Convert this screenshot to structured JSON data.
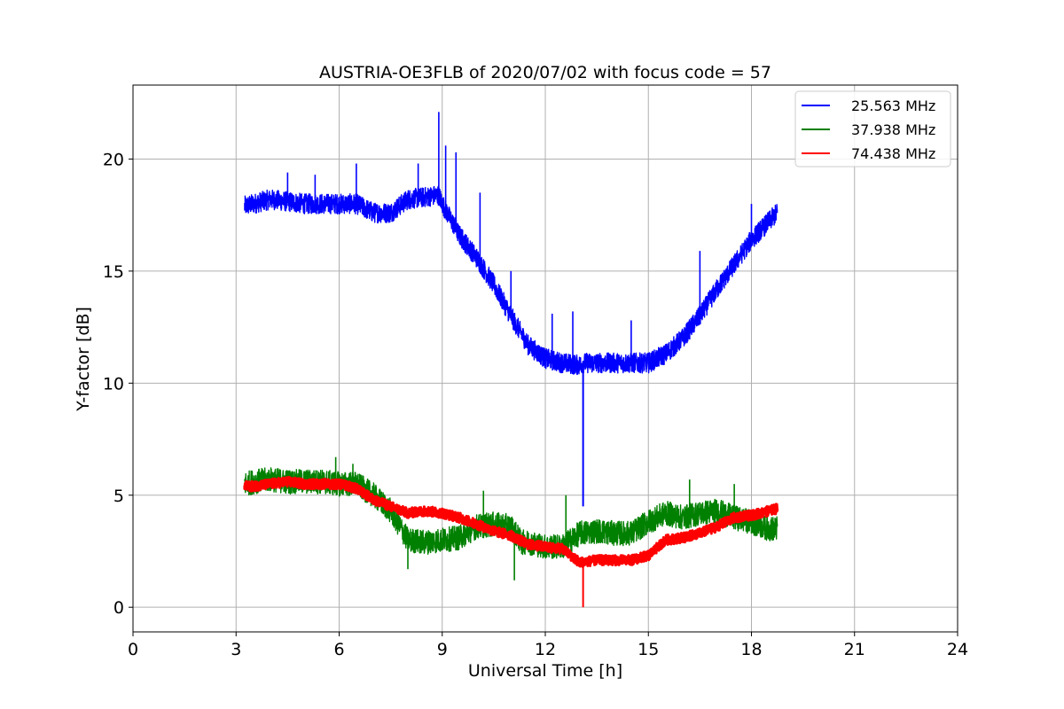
{
  "chart_data": {
    "type": "line",
    "title": "AUSTRIA-OE3FLB of 2020/07/02 with focus code = 57",
    "xlabel": "Universal Time [h]",
    "ylabel": "Y-factor [dB]",
    "xlim": [
      0,
      24
    ],
    "ylim": [
      -1.1,
      23.3
    ],
    "xticks": [
      0,
      3,
      6,
      9,
      12,
      15,
      18,
      21,
      24
    ],
    "yticks": [
      0,
      5,
      10,
      15,
      20
    ],
    "grid": true,
    "legend_position": "top-right",
    "series": [
      {
        "name": "25.563 MHz",
        "color": "#0000ff",
        "x": [
          3.25,
          3.5,
          4.0,
          4.5,
          5.0,
          5.5,
          6.0,
          6.5,
          7.0,
          7.5,
          8.0,
          8.5,
          8.9,
          9.0,
          9.5,
          10.0,
          10.5,
          11.0,
          11.5,
          12.0,
          12.5,
          13.0,
          13.1,
          13.5,
          14.0,
          14.5,
          15.0,
          15.5,
          16.0,
          16.5,
          17.0,
          17.5,
          18.0,
          18.5,
          18.75
        ],
        "y": [
          17.9,
          18.0,
          18.2,
          18.1,
          18.0,
          18.0,
          18.0,
          18.0,
          17.6,
          17.6,
          18.2,
          18.3,
          18.4,
          18.0,
          16.6,
          15.6,
          14.4,
          13.0,
          11.7,
          11.1,
          10.9,
          10.8,
          10.9,
          10.9,
          10.9,
          10.9,
          10.9,
          11.3,
          12.0,
          13.0,
          14.2,
          15.3,
          16.4,
          17.2,
          17.6
        ],
        "noise": 0.45,
        "spikes": [
          {
            "x": 4.5,
            "y": 19.4
          },
          {
            "x": 5.3,
            "y": 19.3
          },
          {
            "x": 6.5,
            "y": 19.8
          },
          {
            "x": 8.3,
            "y": 19.8
          },
          {
            "x": 8.9,
            "y": 22.1
          },
          {
            "x": 9.1,
            "y": 20.6
          },
          {
            "x": 9.4,
            "y": 20.3
          },
          {
            "x": 10.1,
            "y": 18.5
          },
          {
            "x": 11.0,
            "y": 15.0
          },
          {
            "x": 12.2,
            "y": 13.1
          },
          {
            "x": 12.8,
            "y": 13.2
          },
          {
            "x": 14.5,
            "y": 12.8
          },
          {
            "x": 16.5,
            "y": 15.9
          },
          {
            "x": 18.0,
            "y": 18.0
          }
        ],
        "drop": {
          "x": 13.1,
          "y": 4.5
        }
      },
      {
        "name": "37.938 MHz",
        "color": "#008000",
        "x": [
          3.25,
          3.5,
          4.0,
          4.5,
          5.0,
          5.5,
          6.0,
          6.5,
          7.0,
          7.5,
          8.0,
          8.5,
          9.0,
          9.5,
          10.0,
          10.5,
          11.0,
          11.3,
          11.5,
          12.0,
          12.5,
          13.0,
          13.5,
          14.0,
          14.5,
          15.0,
          15.5,
          16.0,
          16.5,
          17.0,
          17.5,
          18.0,
          18.5,
          18.75
        ],
        "y": [
          5.5,
          5.6,
          5.7,
          5.6,
          5.6,
          5.6,
          5.5,
          5.5,
          5.0,
          4.3,
          3.0,
          2.9,
          3.0,
          3.1,
          3.6,
          3.7,
          3.6,
          2.9,
          2.9,
          2.7,
          2.7,
          3.3,
          3.4,
          3.3,
          3.3,
          3.8,
          4.2,
          4.0,
          4.2,
          4.3,
          4.0,
          3.8,
          3.5,
          3.5
        ],
        "noise": 0.55,
        "spikes": [
          {
            "x": 5.9,
            "y": 6.7
          },
          {
            "x": 6.4,
            "y": 6.4
          },
          {
            "x": 10.2,
            "y": 5.2
          },
          {
            "x": 12.6,
            "y": 5.0
          },
          {
            "x": 16.2,
            "y": 5.7
          },
          {
            "x": 17.5,
            "y": 5.5
          },
          {
            "x": 11.1,
            "y": 1.2
          },
          {
            "x": 8.0,
            "y": 1.7
          }
        ],
        "drop": null
      },
      {
        "name": "74.438 MHz",
        "color": "#ff0000",
        "x": [
          3.25,
          3.5,
          4.0,
          4.5,
          5.0,
          5.5,
          6.0,
          6.5,
          7.0,
          7.5,
          8.0,
          8.5,
          9.0,
          9.5,
          10.0,
          10.5,
          11.0,
          11.5,
          12.0,
          12.5,
          13.0,
          13.5,
          14.0,
          14.5,
          15.0,
          15.5,
          16.0,
          16.5,
          17.0,
          17.5,
          18.0,
          18.5,
          18.75
        ],
        "y": [
          5.4,
          5.4,
          5.5,
          5.6,
          5.5,
          5.5,
          5.5,
          5.3,
          4.8,
          4.5,
          4.2,
          4.3,
          4.2,
          4.0,
          3.7,
          3.4,
          3.2,
          2.8,
          2.7,
          2.6,
          2.0,
          2.1,
          2.1,
          2.1,
          2.3,
          3.0,
          3.1,
          3.3,
          3.6,
          4.0,
          4.1,
          4.3,
          4.4
        ],
        "noise": 0.22,
        "spikes": [],
        "drop": {
          "x": 13.1,
          "y": 0.0
        }
      }
    ]
  }
}
